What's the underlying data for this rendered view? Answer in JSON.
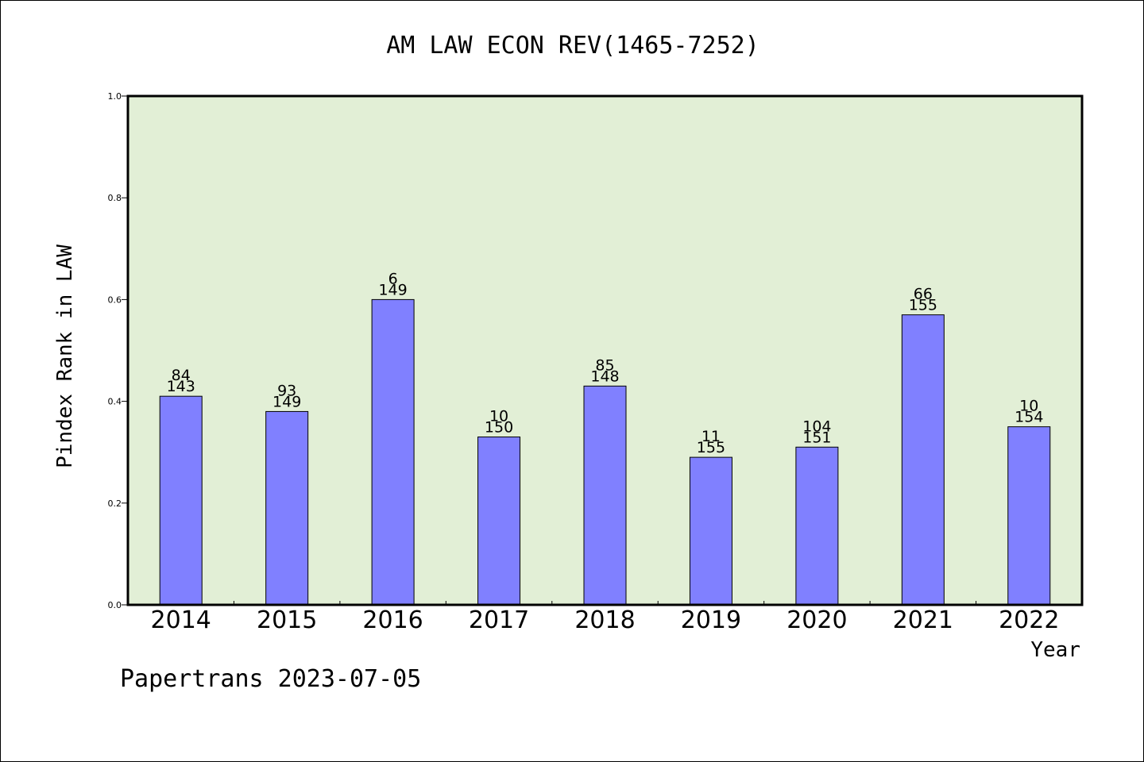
{
  "chart_data": {
    "type": "bar",
    "title": "AM LAW ECON REV(1465-7252)",
    "xlabel": "Year",
    "ylabel": "Pindex Rank in LAW",
    "ylim": [
      0.0,
      1.0
    ],
    "yticks": [
      "0.0",
      "0.2",
      "0.4",
      "0.6",
      "0.8",
      "1.0"
    ],
    "grid": false,
    "categories": [
      "2014",
      "2015",
      "2016",
      "2017",
      "2018",
      "2019",
      "2020",
      "2021",
      "2022"
    ],
    "values": [
      0.41,
      0.38,
      0.6,
      0.33,
      0.43,
      0.29,
      0.31,
      0.57,
      0.35
    ],
    "rank_labels": [
      "84",
      "93",
      "6",
      "10",
      "85",
      "11",
      "104",
      "66",
      "10"
    ],
    "total_labels": [
      "143",
      "149",
      "149",
      "150",
      "148",
      "155",
      "151",
      "155",
      "154"
    ],
    "colors": {
      "bar": "#8080ff",
      "plot_bg": "#e2efd6",
      "axes": "#000000"
    }
  },
  "footer": {
    "credit": "Papertrans 2023-07-05"
  }
}
